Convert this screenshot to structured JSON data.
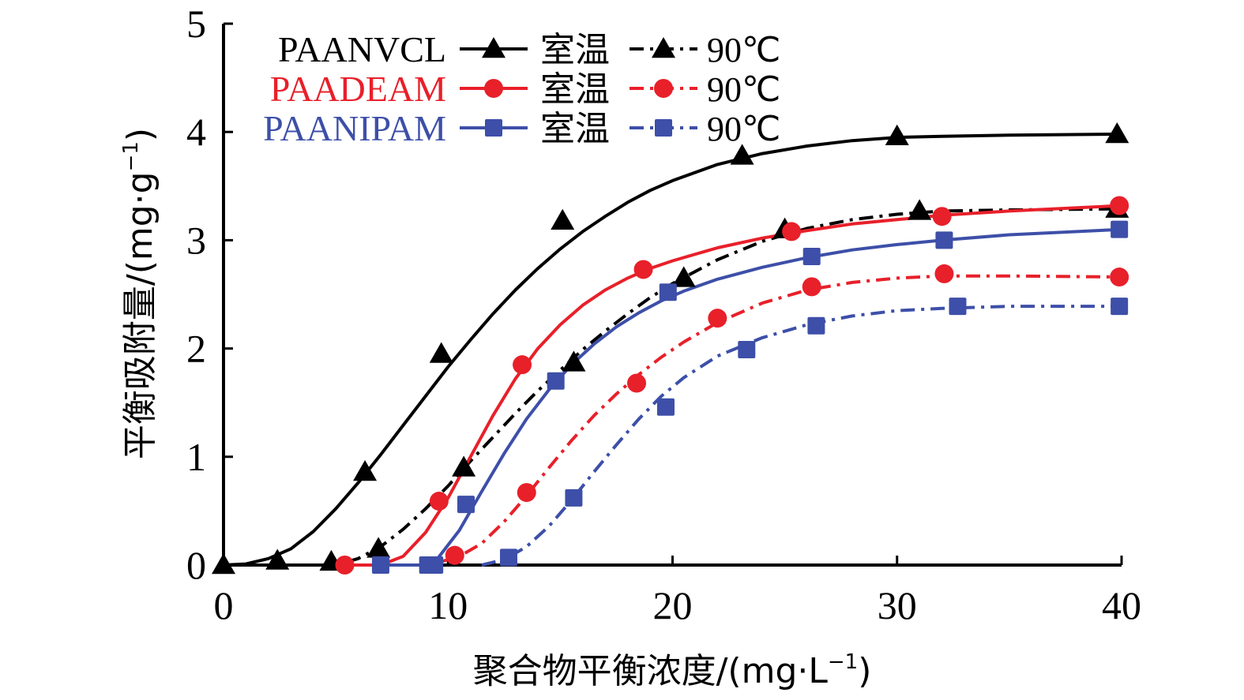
{
  "chart_data": {
    "type": "line",
    "title": "",
    "xlabel": "聚合物平衡浓度/(mg·L",
    "xlabel_sup": "−1",
    "xlabel_tail": ")",
    "ylabel": "平衡吸附量/(mg·g",
    "ylabel_sup": "−1",
    "ylabel_tail": ")",
    "xlim": [
      0,
      40
    ],
    "ylim": [
      0,
      5
    ],
    "x_ticks": [
      0,
      10,
      20,
      30,
      40
    ],
    "x_tick_labels": [
      "0",
      "10",
      "20",
      "30",
      "40"
    ],
    "y_ticks": [
      0,
      1,
      2,
      3,
      4,
      5
    ],
    "y_tick_labels": [
      "0",
      "1",
      "2",
      "3",
      "4",
      "5"
    ],
    "grid": false,
    "legend_position": "top-left",
    "legend": {
      "rows": [
        {
          "polymer": "PAANVCL",
          "color": "#000000",
          "room_label": "室温",
          "hot_label": "90℃"
        },
        {
          "polymer": "PAADEAM",
          "color": "#e8202a",
          "room_label": "室温",
          "hot_label": "90℃"
        },
        {
          "polymer": "PAANIPAM",
          "color": "#3d4fa8",
          "room_label": "室温",
          "hot_label": "90℃"
        }
      ]
    },
    "series": [
      {
        "polymer": "PAANVCL",
        "condition": "室温",
        "color": "#000000",
        "marker": "triangle-icon",
        "line_style": "solid",
        "points": [
          [
            0,
            0
          ],
          [
            2.4,
            0.04
          ],
          [
            6.3,
            0.86
          ],
          [
            9.7,
            1.95
          ],
          [
            15.1,
            3.18
          ],
          [
            23.1,
            3.78
          ],
          [
            30.0,
            3.96
          ],
          [
            39.8,
            3.98
          ]
        ],
        "fit": [
          [
            0,
            0
          ],
          [
            1,
            0.01
          ],
          [
            2,
            0.06
          ],
          [
            3,
            0.15
          ],
          [
            4,
            0.31
          ],
          [
            5,
            0.52
          ],
          [
            6,
            0.76
          ],
          [
            7,
            1.02
          ],
          [
            8,
            1.29
          ],
          [
            9,
            1.56
          ],
          [
            10,
            1.83
          ],
          [
            11,
            2.08
          ],
          [
            12,
            2.32
          ],
          [
            13,
            2.54
          ],
          [
            14,
            2.74
          ],
          [
            15,
            2.92
          ],
          [
            16,
            3.08
          ],
          [
            17,
            3.22
          ],
          [
            18,
            3.35
          ],
          [
            19,
            3.46
          ],
          [
            20,
            3.55
          ],
          [
            22,
            3.7
          ],
          [
            24,
            3.8
          ],
          [
            26,
            3.87
          ],
          [
            28,
            3.92
          ],
          [
            30,
            3.95
          ],
          [
            32,
            3.96
          ],
          [
            35,
            3.97
          ],
          [
            40,
            3.98
          ]
        ]
      },
      {
        "polymer": "PAANVCL",
        "condition": "90℃",
        "color": "#000000",
        "marker": "triangle-icon",
        "line_style": "dash-dot",
        "points": [
          [
            4.8,
            0.03
          ],
          [
            6.9,
            0.15
          ],
          [
            10.7,
            0.9
          ],
          [
            15.6,
            1.87
          ],
          [
            20.5,
            2.65
          ],
          [
            25.0,
            3.1
          ],
          [
            31.0,
            3.27
          ],
          [
            39.8,
            3.29
          ]
        ],
        "fit": [
          [
            5.5,
            0.03
          ],
          [
            6,
            0.06
          ],
          [
            7,
            0.17
          ],
          [
            8,
            0.33
          ],
          [
            9,
            0.52
          ],
          [
            10,
            0.73
          ],
          [
            11,
            0.96
          ],
          [
            12,
            1.18
          ],
          [
            13,
            1.4
          ],
          [
            14,
            1.61
          ],
          [
            15,
            1.8
          ],
          [
            16,
            1.99
          ],
          [
            17,
            2.16
          ],
          [
            18,
            2.32
          ],
          [
            19,
            2.47
          ],
          [
            20,
            2.6
          ],
          [
            22,
            2.82
          ],
          [
            24,
            2.99
          ],
          [
            26,
            3.11
          ],
          [
            28,
            3.19
          ],
          [
            30,
            3.24
          ],
          [
            32,
            3.27
          ],
          [
            35,
            3.28
          ],
          [
            40,
            3.29
          ]
        ]
      },
      {
        "polymer": "PAADEAM",
        "condition": "室温",
        "color": "#e8202a",
        "marker": "circle-icon",
        "line_style": "solid",
        "points": [
          [
            5.4,
            0.0
          ],
          [
            9.6,
            0.59
          ],
          [
            13.3,
            1.85
          ],
          [
            18.7,
            2.73
          ],
          [
            25.3,
            3.08
          ],
          [
            32.0,
            3.22
          ],
          [
            39.9,
            3.32
          ]
        ],
        "fit": [
          [
            5.4,
            0.0
          ],
          [
            7,
            0.0
          ],
          [
            8,
            0.08
          ],
          [
            9,
            0.3
          ],
          [
            10,
            0.62
          ],
          [
            11,
            1.0
          ],
          [
            12,
            1.38
          ],
          [
            13,
            1.72
          ],
          [
            14,
            2.0
          ],
          [
            15,
            2.22
          ],
          [
            16,
            2.4
          ],
          [
            17,
            2.54
          ],
          [
            18,
            2.65
          ],
          [
            19,
            2.74
          ],
          [
            20,
            2.81
          ],
          [
            22,
            2.93
          ],
          [
            24,
            3.02
          ],
          [
            26,
            3.09
          ],
          [
            28,
            3.15
          ],
          [
            30,
            3.19
          ],
          [
            32,
            3.23
          ],
          [
            35,
            3.27
          ],
          [
            40,
            3.32
          ]
        ]
      },
      {
        "polymer": "PAADEAM",
        "condition": "90℃",
        "color": "#e8202a",
        "marker": "circle-icon",
        "line_style": "dash-dot",
        "points": [
          [
            10.3,
            0.09
          ],
          [
            13.5,
            0.67
          ],
          [
            18.4,
            1.68
          ],
          [
            22.0,
            2.28
          ],
          [
            26.2,
            2.57
          ],
          [
            32.1,
            2.69
          ],
          [
            39.9,
            2.66
          ]
        ],
        "fit": [
          [
            9.5,
            0.02
          ],
          [
            10.5,
            0.08
          ],
          [
            11.5,
            0.2
          ],
          [
            12.5,
            0.4
          ],
          [
            13.5,
            0.64
          ],
          [
            14.5,
            0.9
          ],
          [
            15.5,
            1.15
          ],
          [
            16.5,
            1.38
          ],
          [
            17.5,
            1.58
          ],
          [
            18.5,
            1.76
          ],
          [
            19.5,
            1.92
          ],
          [
            20.5,
            2.06
          ],
          [
            22,
            2.24
          ],
          [
            24,
            2.42
          ],
          [
            26,
            2.54
          ],
          [
            28,
            2.61
          ],
          [
            30,
            2.65
          ],
          [
            32,
            2.67
          ],
          [
            35,
            2.67
          ],
          [
            40,
            2.66
          ]
        ]
      },
      {
        "polymer": "PAANIPAM",
        "condition": "室温",
        "color": "#3d4fa8",
        "marker": "square-icon",
        "line_style": "solid",
        "points": [
          [
            7.0,
            0.0
          ],
          [
            9.1,
            0.0
          ],
          [
            10.8,
            0.56
          ],
          [
            14.8,
            1.7
          ],
          [
            19.8,
            2.52
          ],
          [
            26.2,
            2.85
          ],
          [
            32.1,
            3.0
          ],
          [
            39.9,
            3.1
          ]
        ],
        "fit": [
          [
            7,
            0.0
          ],
          [
            9,
            0.0
          ],
          [
            9.5,
            0.05
          ],
          [
            10.5,
            0.32
          ],
          [
            11.5,
            0.68
          ],
          [
            12.5,
            1.03
          ],
          [
            13.5,
            1.35
          ],
          [
            14.5,
            1.62
          ],
          [
            15.5,
            1.85
          ],
          [
            16.5,
            2.04
          ],
          [
            17.5,
            2.2
          ],
          [
            18.5,
            2.33
          ],
          [
            19.5,
            2.44
          ],
          [
            20.5,
            2.53
          ],
          [
            22,
            2.64
          ],
          [
            24,
            2.75
          ],
          [
            26,
            2.84
          ],
          [
            28,
            2.91
          ],
          [
            30,
            2.96
          ],
          [
            32,
            3.0
          ],
          [
            35,
            3.05
          ],
          [
            40,
            3.1
          ]
        ]
      },
      {
        "polymer": "PAANIPAM",
        "condition": "90℃",
        "color": "#3d4fa8",
        "marker": "square-icon",
        "line_style": "dash-dot",
        "points": [
          [
            9.4,
            0.0
          ],
          [
            12.7,
            0.07
          ],
          [
            15.6,
            0.62
          ],
          [
            19.7,
            1.46
          ],
          [
            23.3,
            1.99
          ],
          [
            26.4,
            2.21
          ],
          [
            32.7,
            2.39
          ],
          [
            39.9,
            2.39
          ]
        ],
        "fit": [
          [
            11.5,
            0.0
          ],
          [
            12.5,
            0.05
          ],
          [
            13.5,
            0.17
          ],
          [
            14.5,
            0.36
          ],
          [
            15.5,
            0.6
          ],
          [
            16.5,
            0.86
          ],
          [
            17.5,
            1.11
          ],
          [
            18.5,
            1.35
          ],
          [
            19.5,
            1.56
          ],
          [
            20.5,
            1.73
          ],
          [
            22,
            1.93
          ],
          [
            24,
            2.1
          ],
          [
            26,
            2.22
          ],
          [
            28,
            2.3
          ],
          [
            30,
            2.35
          ],
          [
            32,
            2.37
          ],
          [
            35,
            2.39
          ],
          [
            40,
            2.39
          ]
        ]
      }
    ]
  }
}
